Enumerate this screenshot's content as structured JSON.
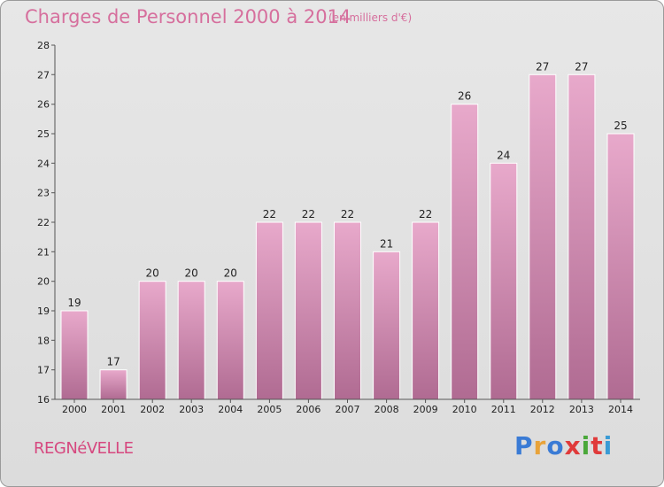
{
  "header": {
    "title": "Charges de Personnel 2000 à 2014",
    "subtitle": "(en milliers d'€)"
  },
  "footer": {
    "commune": "REGNéVELLE",
    "brand": "Proxiti",
    "brand_colors": [
      "#3a7bd5",
      "#e8a33a",
      "#3a7bd5",
      "#e03a3a",
      "#4aa83a",
      "#e03a3a",
      "#3a9bd5"
    ]
  },
  "chart_data": {
    "type": "bar",
    "categories": [
      "2000",
      "2001",
      "2002",
      "2003",
      "2004",
      "2005",
      "2006",
      "2007",
      "2008",
      "2009",
      "2010",
      "2011",
      "2012",
      "2013",
      "2014"
    ],
    "values": [
      19,
      17,
      20,
      20,
      20,
      22,
      22,
      22,
      21,
      22,
      26,
      24,
      27,
      27,
      25
    ],
    "title": "Charges de Personnel 2000 à 2014",
    "ylim": [
      16,
      28
    ],
    "yticks": [
      16,
      17,
      18,
      19,
      20,
      21,
      22,
      23,
      24,
      25,
      26,
      27,
      28
    ],
    "grid": false,
    "data_labels": true,
    "bar_color": "#d987b3"
  }
}
